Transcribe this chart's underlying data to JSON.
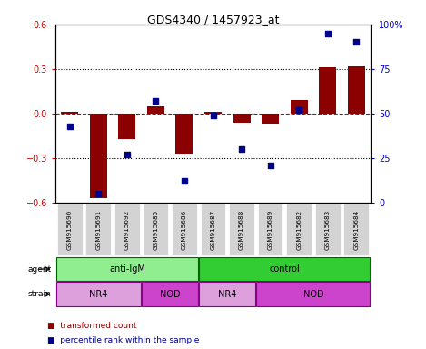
{
  "title": "GDS4340 / 1457923_at",
  "samples": [
    "GSM915690",
    "GSM915691",
    "GSM915692",
    "GSM915685",
    "GSM915686",
    "GSM915687",
    "GSM915688",
    "GSM915689",
    "GSM915682",
    "GSM915683",
    "GSM915684"
  ],
  "bar_values": [
    0.01,
    -0.57,
    -0.17,
    0.05,
    -0.27,
    0.01,
    -0.06,
    -0.07,
    0.09,
    0.31,
    0.32
  ],
  "scatter_values": [
    43,
    5,
    27,
    57,
    12,
    49,
    30,
    21,
    52,
    95,
    90
  ],
  "bar_color": "#8B0000",
  "scatter_color": "#00008B",
  "ylim_left": [
    -0.6,
    0.6
  ],
  "ylim_right": [
    0,
    100
  ],
  "yticks_left": [
    -0.6,
    -0.3,
    0.0,
    0.3,
    0.6
  ],
  "yticks_right": [
    0,
    25,
    50,
    75,
    100
  ],
  "ytick_labels_right": [
    "0",
    "25",
    "50",
    "75",
    "100%"
  ],
  "dotted_lines": [
    -0.3,
    0.3
  ],
  "agent_groups": [
    {
      "label": "anti-IgM",
      "start": 0,
      "end": 5,
      "color": "#90EE90"
    },
    {
      "label": "control",
      "start": 5,
      "end": 11,
      "color": "#32CD32"
    }
  ],
  "strain_groups": [
    {
      "label": "NR4",
      "start": 0,
      "end": 3,
      "color": "#DDA0DD"
    },
    {
      "label": "NOD",
      "start": 3,
      "end": 5,
      "color": "#CC44CC"
    },
    {
      "label": "NR4",
      "start": 5,
      "end": 7,
      "color": "#DDA0DD"
    },
    {
      "label": "NOD",
      "start": 7,
      "end": 11,
      "color": "#CC44CC"
    }
  ],
  "legend_red_label": "transformed count",
  "legend_blue_label": "percentile rank within the sample",
  "tick_bg_color": "#d3d3d3"
}
